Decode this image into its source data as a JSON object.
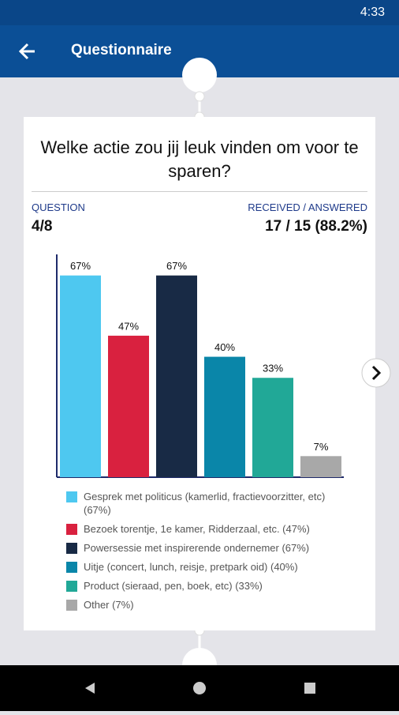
{
  "status_bar": {
    "time": "4:33"
  },
  "app_bar": {
    "title": "Questionnaire"
  },
  "card": {
    "question": "Welke actie zou jij leuk vinden om voor te sparen?",
    "question_label": "QUESTION",
    "question_value": "4/8",
    "received_label": "RECEIVED / ANSWERED",
    "received_value": "17 / 15 (88.2%)"
  },
  "chart_data": {
    "type": "bar",
    "categories": [
      "Gesprek met politicus (kamerlid, fractievoorzitter, etc) (67%)",
      "Bezoek torentje, 1e kamer, Ridderzaal, etc. (47%)",
      "Powersessie met inspirerende ondernemer (67%)",
      "Uitje (concert, lunch, reisje, pretpark oid) (40%)",
      "Product (sieraad, pen, boek, etc) (33%)",
      "Other (7%)"
    ],
    "values": [
      67,
      47,
      67,
      40,
      33,
      7
    ],
    "value_labels": [
      "67%",
      "47%",
      "67%",
      "40%",
      "33%",
      "7%"
    ],
    "colors": [
      "#4ec8f0",
      "#d9213f",
      "#182a45",
      "#0a86a9",
      "#21a897",
      "#a8a8a8"
    ],
    "ylim": [
      0,
      74
    ]
  }
}
